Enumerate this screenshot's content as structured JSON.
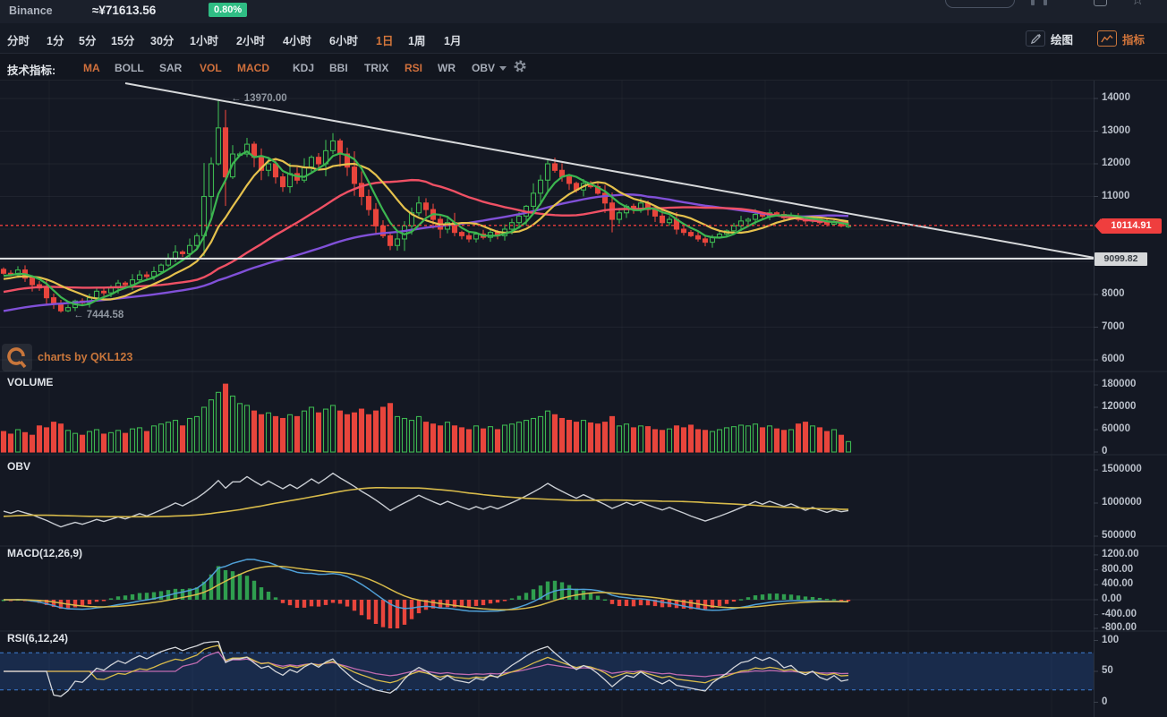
{
  "header": {
    "exchange": "Binance",
    "price": "≈¥71613.56",
    "change": "0.80%"
  },
  "toolbar": {
    "timeframes": [
      {
        "label": "分时",
        "active": false
      },
      {
        "label": "1分",
        "active": false
      },
      {
        "label": "5分",
        "active": false
      },
      {
        "label": "15分",
        "active": false
      },
      {
        "label": "30分",
        "active": false
      },
      {
        "label": "1小时",
        "active": false
      },
      {
        "label": "2小时",
        "active": false
      },
      {
        "label": "4小时",
        "active": false
      },
      {
        "label": "6小时",
        "active": false
      },
      {
        "label": "1日",
        "active": true
      },
      {
        "label": "1周",
        "active": false
      },
      {
        "label": "1月",
        "active": false
      }
    ],
    "draw_label": "绘图",
    "indicators_label": "指标"
  },
  "indicator_bar": {
    "title": "技术指标:",
    "items": [
      {
        "label": "MA",
        "active": true
      },
      {
        "label": "BOLL",
        "active": false
      },
      {
        "label": "SAR",
        "active": false
      },
      {
        "label": "VOL",
        "active": true
      },
      {
        "label": "MACD",
        "active": true
      },
      {
        "label": "KDJ",
        "active": false
      },
      {
        "label": "BBI",
        "active": false
      },
      {
        "label": "TRIX",
        "active": false
      },
      {
        "label": "RSI",
        "active": true
      },
      {
        "label": "WR",
        "active": false
      },
      {
        "label": "OBV",
        "active": false,
        "dropdown": true
      }
    ]
  },
  "watermark": "charts by QKL123",
  "annotations": {
    "high": "← 13970.00",
    "low": "← 7444.58"
  },
  "price_tags": {
    "last": "10114.91",
    "level": "9099.82"
  },
  "panels": {
    "volume_label": "VOLUME",
    "obv_label": "OBV",
    "macd_label": "MACD(12,26,9)",
    "rsi_label": "RSI(6,12,24)"
  },
  "axes": {
    "main": [
      "14000",
      "13000",
      "12000",
      "11000",
      "8000",
      "7000",
      "6000"
    ],
    "volume": [
      "180000",
      "120000",
      "60000",
      "0"
    ],
    "obv": [
      "1500000",
      "1000000",
      "500000"
    ],
    "macd": [
      "1200.00",
      "800.00",
      "400.00",
      "0.00",
      "-400.00",
      "-800.00"
    ],
    "rsi": [
      "100",
      "50",
      "0"
    ]
  },
  "chart_data": {
    "type": "candlestick",
    "title": "Binance daily candlestick chart with MA, VOLUME, OBV, MACD, RSI",
    "last_price": 10114.91,
    "high_annotation": 13970.0,
    "low_annotation": 7444.58,
    "support_level": 9099.82,
    "main_axis_range": [
      5650,
      14550
    ],
    "volume_axis_range": [
      0,
      220000
    ],
    "obv_axis_range": [
      330000,
      1680000
    ],
    "macd_axis_range": [
      -1390,
      1390
    ],
    "rsi_axis_range": [
      0,
      115
    ],
    "rsi_band": [
      20,
      80
    ],
    "ma_periods": [
      5,
      10,
      30,
      60
    ],
    "macd_params": [
      12,
      26,
      9
    ],
    "rsi_params": [
      6,
      12,
      24
    ],
    "closes": [
      8650,
      8600,
      8750,
      8500,
      8300,
      8200,
      7900,
      7700,
      7500,
      7600,
      7800,
      7750,
      7900,
      8100,
      8050,
      8200,
      8350,
      8300,
      8450,
      8600,
      8550,
      8700,
      8900,
      9100,
      9300,
      9250,
      9500,
      9800,
      11000,
      12000,
      13100,
      11600,
      12300,
      12300,
      12600,
      12200,
      11800,
      12000,
      11600,
      11300,
      11700,
      11500,
      11900,
      12200,
      12000,
      12400,
      12700,
      12300,
      11900,
      11400,
      11000,
      10600,
      10100,
      9800,
      9500,
      9700,
      10100,
      10500,
      10800,
      10600,
      10300,
      10000,
      10200,
      9900,
      9800,
      9700,
      9850,
      9750,
      9900,
      9800,
      10000,
      10200,
      10400,
      10700,
      11100,
      11500,
      12000,
      11800,
      11600,
      11400,
      11200,
      11400,
      11300,
      11100,
      10800,
      10300,
      10500,
      10700,
      10600,
      10800,
      10600,
      10400,
      10200,
      10300,
      10000,
      9900,
      9800,
      9700,
      9600,
      9750,
      9850,
      9950,
      10100,
      10250,
      10300,
      10450,
      10400,
      10500,
      10450,
      10350,
      10400,
      10300,
      10250,
      10300,
      10200,
      10150,
      10200,
      10100,
      10115
    ],
    "volumes": [
      55000,
      48000,
      60000,
      52000,
      45000,
      70000,
      65000,
      80000,
      75000,
      58000,
      50000,
      45000,
      55000,
      60000,
      48000,
      52000,
      58000,
      50000,
      62000,
      65000,
      55000,
      70000,
      75000,
      80000,
      85000,
      70000,
      90000,
      95000,
      120000,
      140000,
      160000,
      182000,
      150000,
      130000,
      125000,
      110000,
      100000,
      105000,
      95000,
      90000,
      100000,
      95000,
      110000,
      120000,
      105000,
      115000,
      125000,
      110000,
      100000,
      105000,
      115000,
      100000,
      110000,
      120000,
      130000,
      95000,
      90000,
      85000,
      95000,
      80000,
      75000,
      70000,
      80000,
      70000,
      65000,
      60000,
      70000,
      62000,
      68000,
      60000,
      72000,
      75000,
      80000,
      85000,
      90000,
      95000,
      110000,
      100000,
      90000,
      85000,
      80000,
      85000,
      78000,
      75000,
      80000,
      95000,
      70000,
      75000,
      65000,
      70000,
      68000,
      60000,
      58000,
      62000,
      70000,
      65000,
      72000,
      60000,
      58000,
      55000,
      60000,
      65000,
      68000,
      72000,
      70000,
      75000,
      65000,
      70000,
      62000,
      58000,
      60000,
      75000,
      80000,
      70000,
      65000,
      55000,
      60000,
      45000,
      28000
    ]
  },
  "colors": {
    "up": "#3cb650",
    "down": "#e8453c",
    "ma5": "#3cb650",
    "ma10": "#e5c14d",
    "ma30": "#ef5064",
    "ma60": "#8050d8",
    "accent": "#cf7a3e",
    "badge": "#2fbd84",
    "last_line": "#ef3e3e",
    "trendline": "#d6d8da",
    "support": "#e4e6e8",
    "obv": "#c8ccd2",
    "obv_ma": "#d7ba4a",
    "dif": "#4f9fd6",
    "dea": "#d7ba4a",
    "rsi1": "#d4d6da",
    "rsi2": "#d7ba4a",
    "rsi3": "#c06bb0",
    "band_line": "#3e7fd6"
  }
}
